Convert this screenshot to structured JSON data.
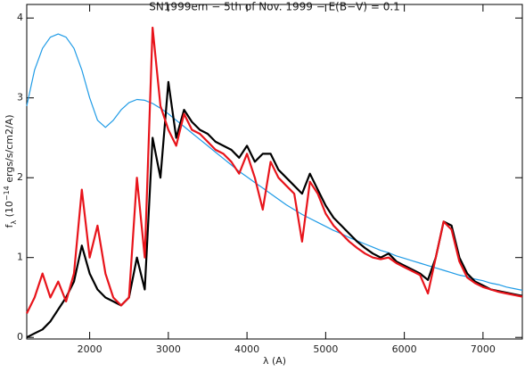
{
  "chart_data": {
    "type": "line",
    "title": "SN1999em − 5th of Nov. 1999 − E(B−V) = 0.1",
    "xlabel": "λ (A)",
    "ylabel": {
      "symbol": "f",
      "subscript": "λ",
      "text1": " (10",
      "exponent": "−14",
      "text2": " ergs/s/cm2/A)"
    },
    "x": [
      1200,
      1300,
      1400,
      1500,
      1600,
      1700,
      1800,
      1900,
      2000,
      2100,
      2200,
      2300,
      2400,
      2500,
      2600,
      2700,
      2800,
      2900,
      3000,
      3100,
      3200,
      3300,
      3400,
      3500,
      3600,
      3700,
      3800,
      3900,
      4000,
      4100,
      4200,
      4300,
      4400,
      4500,
      4600,
      4700,
      4800,
      4900,
      5000,
      5100,
      5200,
      5300,
      5400,
      5500,
      5600,
      5700,
      5800,
      5900,
      6000,
      6100,
      6200,
      6300,
      6400,
      6500,
      6600,
      6700,
      6800,
      6900,
      7000,
      7100,
      7200,
      7300,
      7400,
      7500
    ],
    "series": [
      {
        "color": "#1f9be6",
        "values": [
          2.9,
          3.35,
          3.62,
          3.76,
          3.8,
          3.76,
          3.62,
          3.35,
          3.0,
          2.72,
          2.63,
          2.72,
          2.85,
          2.94,
          2.98,
          2.97,
          2.93,
          2.87,
          2.8,
          2.72,
          2.64,
          2.56,
          2.48,
          2.4,
          2.32,
          2.24,
          2.16,
          2.08,
          2.01,
          1.94,
          1.87,
          1.8,
          1.73,
          1.66,
          1.6,
          1.54,
          1.49,
          1.44,
          1.39,
          1.34,
          1.3,
          1.25,
          1.21,
          1.17,
          1.13,
          1.09,
          1.06,
          1.02,
          0.99,
          0.96,
          0.93,
          0.9,
          0.87,
          0.84,
          0.81,
          0.78,
          0.76,
          0.73,
          0.71,
          0.68,
          0.66,
          0.63,
          0.61,
          0.59
        ]
      },
      {
        "color": "#000000",
        "values": [
          0.0,
          0.05,
          0.1,
          0.2,
          0.35,
          0.5,
          0.7,
          1.15,
          0.8,
          0.6,
          0.5,
          0.45,
          0.4,
          0.5,
          1.0,
          0.6,
          2.5,
          2.0,
          3.2,
          2.5,
          2.85,
          2.7,
          2.6,
          2.55,
          2.45,
          2.4,
          2.35,
          2.25,
          2.4,
          2.2,
          2.3,
          2.3,
          2.1,
          2.0,
          1.9,
          1.8,
          2.05,
          1.85,
          1.65,
          1.5,
          1.4,
          1.3,
          1.2,
          1.12,
          1.05,
          1.0,
          1.05,
          0.95,
          0.9,
          0.85,
          0.8,
          0.72,
          1.0,
          1.45,
          1.4,
          1.0,
          0.8,
          0.7,
          0.65,
          0.6,
          0.58,
          0.56,
          0.54,
          0.52
        ]
      },
      {
        "color": "#e8141b",
        "values": [
          0.3,
          0.5,
          0.8,
          0.5,
          0.7,
          0.45,
          0.8,
          1.85,
          1.0,
          1.4,
          0.8,
          0.5,
          0.4,
          0.5,
          2.0,
          1.0,
          3.88,
          2.9,
          2.6,
          2.4,
          2.8,
          2.6,
          2.55,
          2.45,
          2.35,
          2.3,
          2.2,
          2.05,
          2.3,
          2.0,
          1.6,
          2.2,
          2.0,
          1.9,
          1.8,
          1.2,
          1.95,
          1.8,
          1.55,
          1.4,
          1.3,
          1.2,
          1.12,
          1.05,
          1.0,
          0.98,
          1.0,
          0.93,
          0.88,
          0.83,
          0.78,
          0.55,
          1.0,
          1.45,
          1.35,
          0.95,
          0.75,
          0.68,
          0.63,
          0.6,
          0.57,
          0.55,
          0.53,
          0.51
        ]
      }
    ],
    "xlim": [
      1200,
      7500
    ],
    "xticks": [
      2000,
      3000,
      4000,
      5000,
      6000,
      7000
    ],
    "ylim": [
      -0.02,
      4.17
    ],
    "yticks": [
      0,
      1,
      2,
      3,
      4
    ]
  }
}
